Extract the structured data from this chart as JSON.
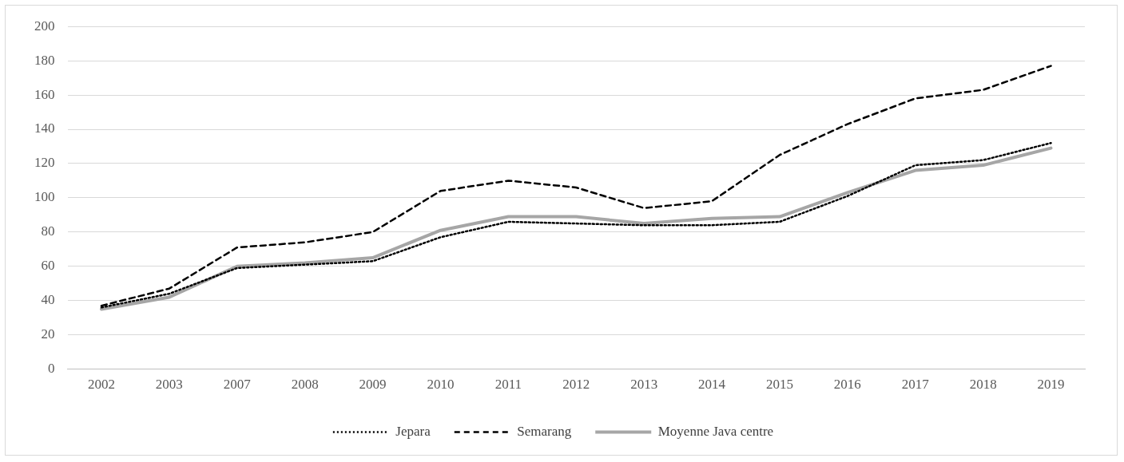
{
  "chart_data": {
    "type": "line",
    "categories": [
      "2002",
      "2003",
      "2007",
      "2008",
      "2009",
      "2010",
      "2011",
      "2012",
      "2013",
      "2014",
      "2015",
      "2016",
      "2017",
      "2018",
      "2019"
    ],
    "series": [
      {
        "name": "Jepara",
        "color": "#000000",
        "line_style": "dotted",
        "values": [
          36,
          44,
          59,
          61,
          63,
          77,
          86,
          85,
          84,
          84,
          86,
          101,
          119,
          122,
          132
        ]
      },
      {
        "name": "Semarang",
        "color": "#000000",
        "line_style": "dashed",
        "values": [
          37,
          47,
          71,
          74,
          80,
          104,
          110,
          106,
          94,
          98,
          125,
          143,
          158,
          163,
          177
        ]
      },
      {
        "name": "Moyenne Java centre",
        "color": "#a6a6a6",
        "line_style": "solid",
        "values": [
          35,
          42,
          60,
          62,
          65,
          81,
          89,
          89,
          85,
          88,
          89,
          103,
          116,
          119,
          129
        ]
      }
    ],
    "ylim": [
      0,
      200
    ],
    "yticks": [
      0,
      20,
      40,
      60,
      80,
      100,
      120,
      140,
      160,
      180,
      200
    ],
    "grid": "y",
    "legend": "bottom",
    "marker": "none"
  }
}
